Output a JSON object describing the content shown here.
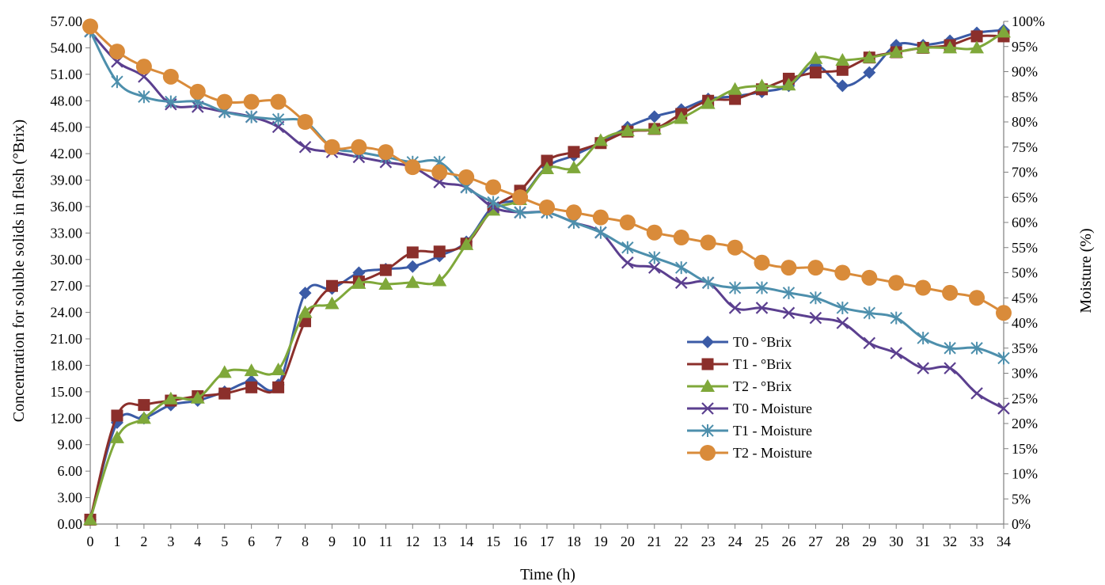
{
  "chart_data": {
    "type": "line",
    "title": "",
    "xlabel": "Time (h)",
    "ylabel": "Concentration for soluble solids in flesh (°Brix)",
    "y2label": "Moisture (%)",
    "x": [
      0,
      1,
      2,
      3,
      4,
      5,
      6,
      7,
      8,
      9,
      10,
      11,
      12,
      13,
      14,
      15,
      16,
      17,
      18,
      19,
      20,
      21,
      22,
      23,
      24,
      25,
      26,
      27,
      28,
      29,
      30,
      31,
      32,
      33,
      34
    ],
    "xlim": [
      0,
      34
    ],
    "ylim": [
      0,
      57
    ],
    "y2lim": [
      0,
      100
    ],
    "yticks": [
      "0.00",
      "3.00",
      "6.00",
      "9.00",
      "12.00",
      "15.00",
      "18.00",
      "21.00",
      "24.00",
      "27.00",
      "30.00",
      "33.00",
      "36.00",
      "39.00",
      "42.00",
      "45.00",
      "48.00",
      "51.00",
      "54.00",
      "57.00"
    ],
    "y2ticks": [
      "0%",
      "5%",
      "10%",
      "15%",
      "20%",
      "25%",
      "30%",
      "35%",
      "40%",
      "45%",
      "50%",
      "55%",
      "60%",
      "65%",
      "70%",
      "75%",
      "80%",
      "85%",
      "90%",
      "95%",
      "100%"
    ],
    "grid": false,
    "legend_position": "center-right",
    "series": [
      {
        "name": "T0 - °Brix",
        "axis": "left",
        "color": "#3b5ba6",
        "marker": "diamond",
        "values": [
          0.5,
          11.5,
          12.0,
          13.5,
          14.0,
          15.0,
          16.2,
          15.8,
          26.2,
          26.7,
          28.5,
          28.9,
          29.2,
          30.4,
          32.0,
          36.0,
          37.0,
          40.5,
          41.8,
          43.3,
          45.0,
          46.2,
          47.0,
          48.2,
          48.5,
          49.0,
          49.7,
          52.0,
          49.7,
          51.2,
          54.3,
          54.3,
          54.8,
          55.7,
          56.0
        ]
      },
      {
        "name": "T1 - °Brix",
        "axis": "left",
        "color": "#8b2f2b",
        "marker": "square",
        "values": [
          0.5,
          12.3,
          13.5,
          14.0,
          14.5,
          14.8,
          15.5,
          15.5,
          23.0,
          27.0,
          27.5,
          28.8,
          30.8,
          30.9,
          31.8,
          35.8,
          37.8,
          41.2,
          42.2,
          43.2,
          44.5,
          44.8,
          46.5,
          48.0,
          48.2,
          49.3,
          50.5,
          51.2,
          51.5,
          52.9,
          53.5,
          54.0,
          54.3,
          55.3,
          55.3
        ]
      },
      {
        "name": "T2 - °Brix",
        "axis": "left",
        "color": "#7fa83a",
        "marker": "triangle",
        "values": [
          0.5,
          9.8,
          12.0,
          14.2,
          14.3,
          17.2,
          17.4,
          17.5,
          24.0,
          25.0,
          27.3,
          27.2,
          27.4,
          27.6,
          31.7,
          35.6,
          36.8,
          40.3,
          40.4,
          43.5,
          44.6,
          44.8,
          46.0,
          47.7,
          49.3,
          49.7,
          49.8,
          52.8,
          52.6,
          52.9,
          53.5,
          54.0,
          54.0,
          54.0,
          55.8
        ]
      },
      {
        "name": "T0 - Moisture",
        "axis": "right",
        "color": "#5b3f8f",
        "marker": "x",
        "values": [
          98,
          92,
          89,
          83.5,
          83,
          82,
          81,
          79,
          75,
          74,
          73,
          72,
          71,
          68,
          67,
          63,
          62,
          62,
          60,
          58,
          52,
          51,
          48,
          48,
          43,
          43,
          42,
          41,
          40,
          36,
          34,
          31,
          31,
          26,
          23
        ]
      },
      {
        "name": "T1 - Moisture",
        "axis": "right",
        "color": "#4d8fac",
        "marker": "star",
        "values": [
          98,
          88,
          85,
          84,
          84,
          82,
          81,
          80.5,
          80,
          75,
          74,
          73,
          72,
          72,
          67,
          64,
          62,
          62,
          60,
          58,
          55,
          53,
          51,
          48,
          47,
          47,
          46,
          45,
          43,
          42,
          41,
          37,
          35,
          35,
          33
        ]
      },
      {
        "name": "T2 - Moisture",
        "axis": "right",
        "color": "#d98b3a",
        "marker": "circle",
        "values": [
          99,
          94,
          91,
          89,
          86,
          84,
          84,
          84,
          80,
          75,
          75,
          74,
          71,
          70,
          69,
          67,
          65,
          63,
          62,
          61,
          60,
          58,
          57,
          56,
          55,
          52,
          51,
          51,
          50,
          49,
          48,
          47,
          46,
          45,
          42
        ]
      }
    ]
  }
}
